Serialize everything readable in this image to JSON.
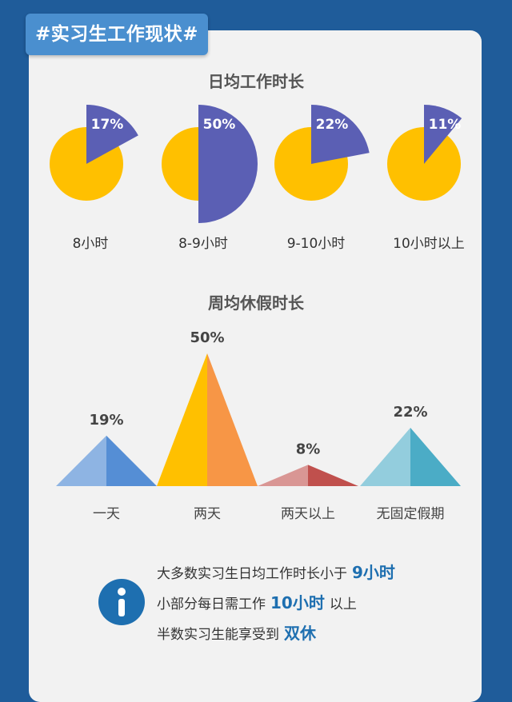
{
  "header": {
    "badge": "#实习生工作现状#"
  },
  "colors": {
    "pie_base": "#FFC000",
    "pie_slice": "#5B5FB4",
    "mountains": [
      {
        "left": "#8EB4E3",
        "right": "#558ED5"
      },
      {
        "left": "#FFC000",
        "right": "#F79646"
      },
      {
        "left": "#D99694",
        "right": "#C0504D"
      },
      {
        "left": "#93CDDD",
        "right": "#4BACC6"
      }
    ],
    "accent": "#1E6FB0"
  },
  "chart_data": [
    {
      "type": "pie",
      "title": "日均工作时长",
      "categories": [
        "8小时",
        "8-9小时",
        "9-10小时",
        "10小时以上"
      ],
      "values": [
        17,
        50,
        22,
        11
      ],
      "value_labels": [
        "17%",
        "50%",
        "22%",
        "11%"
      ],
      "unit": "%"
    },
    {
      "type": "area",
      "title": "周均休假时长",
      "categories": [
        "一天",
        "两天",
        "两天以上",
        "无固定假期"
      ],
      "values": [
        19,
        50,
        8,
        22
      ],
      "value_labels": [
        "19%",
        "50%",
        "8%",
        "22%"
      ],
      "unit": "%"
    }
  ],
  "summary": {
    "line1": {
      "text": "大多数实习生日均工作时长小于",
      "highlight": "9小时",
      "suffix": ""
    },
    "line2": {
      "text": "小部分每日需工作",
      "highlight": "10小时",
      "suffix": "以上"
    },
    "line3": {
      "text": "半数实习生能享受到",
      "highlight": "双休",
      "suffix": ""
    }
  }
}
